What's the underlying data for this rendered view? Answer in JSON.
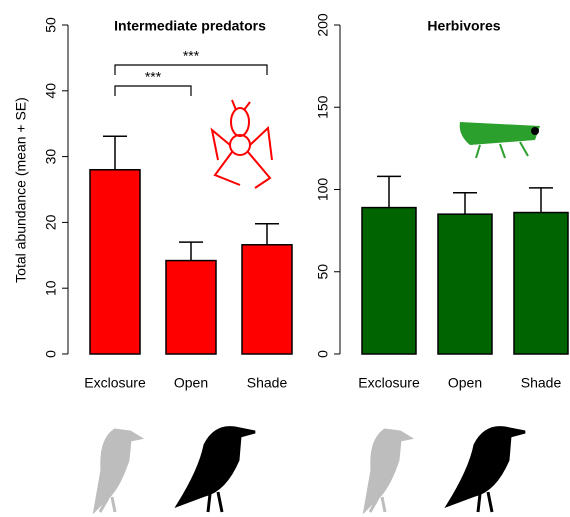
{
  "chart_data": [
    {
      "type": "bar",
      "title": "Intermediate predators",
      "ylabel": "Total abundance (mean + SE)",
      "categories": [
        "Exclosure",
        "Open",
        "Shade"
      ],
      "values": [
        28,
        14.2,
        16.6
      ],
      "errors": [
        5.1,
        2.8,
        3.2
      ],
      "color": "#ff0000",
      "ylim": [
        0,
        50
      ],
      "yticks": [
        0,
        10,
        20,
        30,
        40,
        50
      ],
      "annotations": [
        "***",
        "***"
      ]
    },
    {
      "type": "bar",
      "title": "Herbivores",
      "categories": [
        "Exclosure",
        "Open",
        "Shade"
      ],
      "values": [
        89,
        85,
        86
      ],
      "errors": [
        19,
        13,
        15
      ],
      "color": "#006400",
      "ylim": [
        0,
        200
      ],
      "yticks": [
        0,
        50,
        100,
        150,
        200
      ]
    }
  ]
}
